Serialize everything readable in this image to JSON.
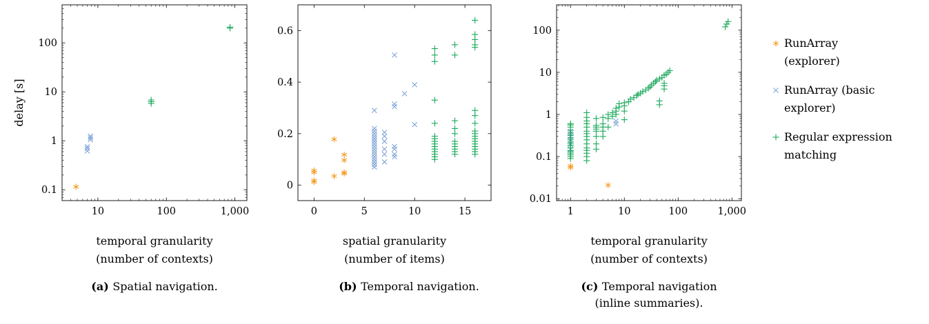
{
  "colors": {
    "runarray_explorer": "#F39C1F",
    "runarray_basic": "#7FA4D8",
    "regex": "#19A85A"
  },
  "legend": {
    "items": [
      {
        "series": "runarray_explorer",
        "marker": "asterisk",
        "lines": [
          "RunArray",
          "(explorer)"
        ]
      },
      {
        "series": "runarray_basic",
        "marker": "cross",
        "lines": [
          "RunArray (basic",
          "explorer)"
        ]
      },
      {
        "series": "regex",
        "marker": "plus",
        "lines": [
          "Regular expression",
          "matching"
        ]
      }
    ]
  },
  "chart_data": [
    {
      "type": "scatter",
      "id": "a",
      "caption_tag": "(a)",
      "caption": [
        "Spatial navigation."
      ],
      "xlabel": [
        "temporal granularity",
        "(number of contexts)"
      ],
      "ylabel": "delay [s]",
      "xscale": "log",
      "yscale": "log",
      "xlim": [
        3,
        1500
      ],
      "ylim": [
        0.06,
        600
      ],
      "xticks": [
        [
          10,
          "10"
        ],
        [
          100,
          "100"
        ],
        [
          1000,
          "1,000"
        ]
      ],
      "yticks": [
        [
          0.1,
          "0.1"
        ],
        [
          1,
          "1"
        ],
        [
          10,
          "10"
        ],
        [
          100,
          "100"
        ]
      ],
      "series": [
        {
          "key": "runarray_explorer",
          "marker": "asterisk",
          "points": [
            [
              4.8,
              0.115
            ]
          ]
        },
        {
          "key": "runarray_basic",
          "marker": "cross",
          "points": [
            [
              7,
              0.62
            ],
            [
              7,
              0.7
            ],
            [
              7,
              0.76
            ],
            [
              7.8,
              1.05
            ],
            [
              7.8,
              1.15
            ],
            [
              7.8,
              1.25
            ]
          ]
        },
        {
          "key": "regex",
          "marker": "plus",
          "points": [
            [
              60,
              5.8
            ],
            [
              60,
              6.3
            ],
            [
              60,
              6.8
            ],
            [
              850,
              210
            ],
            [
              850,
              200
            ]
          ]
        }
      ]
    },
    {
      "type": "scatter",
      "id": "b",
      "caption_tag": "(b)",
      "caption": [
        "Temporal navigation."
      ],
      "xlabel": [
        "spatial granularity",
        "(number of items)"
      ],
      "ylabel": "",
      "xscale": "linear",
      "yscale": "linear",
      "xlim": [
        -1.6,
        17.6
      ],
      "ylim": [
        -0.06,
        0.7
      ],
      "xticks": [
        [
          0,
          "0"
        ],
        [
          5,
          "5"
        ],
        [
          10,
          "10"
        ],
        [
          15,
          "15"
        ]
      ],
      "yticks": [
        [
          0,
          "0"
        ],
        [
          0.2,
          "0.2"
        ],
        [
          0.4,
          "0.4"
        ],
        [
          0.6,
          "0.6"
        ]
      ],
      "series": [
        {
          "key": "runarray_explorer",
          "marker": "asterisk",
          "points": [
            [
              0,
              0.012
            ],
            [
              0,
              0.018
            ],
            [
              0,
              0.05
            ],
            [
              0,
              0.057
            ],
            [
              2,
              0.035
            ],
            [
              2,
              0.178
            ],
            [
              3,
              0.045
            ],
            [
              3,
              0.05
            ],
            [
              3,
              0.097
            ],
            [
              3,
              0.118
            ]
          ]
        },
        {
          "key": "runarray_basic",
          "marker": "cross",
          "points": [
            [
              6,
              0.07
            ],
            [
              6,
              0.08
            ],
            [
              6,
              0.09
            ],
            [
              6,
              0.1
            ],
            [
              6,
              0.11
            ],
            [
              6,
              0.12
            ],
            [
              6,
              0.13
            ],
            [
              6,
              0.14
            ],
            [
              6,
              0.15
            ],
            [
              6,
              0.16
            ],
            [
              6,
              0.17
            ],
            [
              6,
              0.18
            ],
            [
              6,
              0.19
            ],
            [
              6,
              0.2
            ],
            [
              6,
              0.21
            ],
            [
              6,
              0.22
            ],
            [
              6,
              0.29
            ],
            [
              7,
              0.09
            ],
            [
              7,
              0.12
            ],
            [
              7,
              0.14
            ],
            [
              7,
              0.17
            ],
            [
              7,
              0.19
            ],
            [
              7,
              0.205
            ],
            [
              8,
              0.11
            ],
            [
              8,
              0.12
            ],
            [
              8,
              0.14
            ],
            [
              8,
              0.15
            ],
            [
              8,
              0.305
            ],
            [
              8,
              0.315
            ],
            [
              8,
              0.505
            ],
            [
              9,
              0.355
            ],
            [
              10,
              0.235
            ],
            [
              10,
              0.39
            ]
          ]
        },
        {
          "key": "regex",
          "marker": "plus",
          "points": [
            [
              12,
              0.1
            ],
            [
              12,
              0.11
            ],
            [
              12,
              0.12
            ],
            [
              12,
              0.13
            ],
            [
              12,
              0.14
            ],
            [
              12,
              0.15
            ],
            [
              12,
              0.16
            ],
            [
              12,
              0.17
            ],
            [
              12,
              0.18
            ],
            [
              12,
              0.19
            ],
            [
              12,
              0.24
            ],
            [
              12,
              0.33
            ],
            [
              12,
              0.48
            ],
            [
              12,
              0.505
            ],
            [
              12,
              0.53
            ],
            [
              14,
              0.12
            ],
            [
              14,
              0.13
            ],
            [
              14,
              0.14
            ],
            [
              14,
              0.15
            ],
            [
              14,
              0.16
            ],
            [
              14,
              0.17
            ],
            [
              14,
              0.2
            ],
            [
              14,
              0.22
            ],
            [
              14,
              0.25
            ],
            [
              14,
              0.505
            ],
            [
              14,
              0.545
            ],
            [
              16,
              0.12
            ],
            [
              16,
              0.13
            ],
            [
              16,
              0.14
            ],
            [
              16,
              0.15
            ],
            [
              16,
              0.16
            ],
            [
              16,
              0.17
            ],
            [
              16,
              0.18
            ],
            [
              16,
              0.19
            ],
            [
              16,
              0.2
            ],
            [
              16,
              0.21
            ],
            [
              16,
              0.24
            ],
            [
              16,
              0.27
            ],
            [
              16,
              0.29
            ],
            [
              16,
              0.535
            ],
            [
              16,
              0.545
            ],
            [
              16,
              0.565
            ],
            [
              16,
              0.585
            ],
            [
              16,
              0.64
            ]
          ]
        }
      ]
    },
    {
      "type": "scatter",
      "id": "c",
      "caption_tag": "(c)",
      "caption": [
        "Temporal navigation",
        "(inline summaries)."
      ],
      "xlabel": [
        "temporal granularity",
        "(number of contexts)"
      ],
      "ylabel": "",
      "xscale": "log",
      "yscale": "log",
      "xlim": [
        0.55,
        1500
      ],
      "ylim": [
        0.009,
        400
      ],
      "xticks": [
        [
          1,
          "1"
        ],
        [
          10,
          "10"
        ],
        [
          100,
          "100"
        ],
        [
          1000,
          "1,000"
        ]
      ],
      "yticks": [
        [
          0.01,
          "0.01"
        ],
        [
          0.1,
          "0.1"
        ],
        [
          1,
          "1"
        ],
        [
          10,
          "10"
        ],
        [
          100,
          "100"
        ]
      ],
      "series": [
        {
          "key": "runarray_explorer",
          "marker": "asterisk",
          "points": [
            [
              1,
              0.055
            ],
            [
              1,
              0.06
            ],
            [
              5,
              0.021
            ]
          ]
        },
        {
          "key": "runarray_basic",
          "marker": "cross",
          "points": [
            [
              1,
              0.15
            ],
            [
              1,
              0.2
            ],
            [
              1,
              0.25
            ],
            [
              1,
              0.3
            ],
            [
              1,
              0.35
            ],
            [
              1,
              0.4
            ],
            [
              7,
              0.6
            ],
            [
              7,
              0.7
            ]
          ]
        },
        {
          "key": "regex",
          "marker": "plus",
          "points": [
            [
              1,
              0.09
            ],
            [
              1,
              0.1
            ],
            [
              1,
              0.11
            ],
            [
              1,
              0.12
            ],
            [
              1,
              0.13
            ],
            [
              1,
              0.14
            ],
            [
              1,
              0.16
            ],
            [
              1,
              0.18
            ],
            [
              1,
              0.2
            ],
            [
              1,
              0.22
            ],
            [
              1,
              0.25
            ],
            [
              1,
              0.28
            ],
            [
              1,
              0.32
            ],
            [
              1,
              0.36
            ],
            [
              1,
              0.42
            ],
            [
              1,
              0.5
            ],
            [
              1,
              0.56
            ],
            [
              1,
              0.6
            ],
            [
              2,
              0.08
            ],
            [
              2,
              0.1
            ],
            [
              2,
              0.12
            ],
            [
              2,
              0.14
            ],
            [
              2,
              0.16
            ],
            [
              2,
              0.2
            ],
            [
              2,
              0.25
            ],
            [
              2,
              0.3
            ],
            [
              2,
              0.35
            ],
            [
              2,
              0.4
            ],
            [
              2,
              0.5
            ],
            [
              2,
              0.6
            ],
            [
              2,
              0.7
            ],
            [
              2,
              0.85
            ],
            [
              2,
              1.1
            ],
            [
              3,
              0.15
            ],
            [
              3,
              0.2
            ],
            [
              3,
              0.3
            ],
            [
              3,
              0.4
            ],
            [
              3,
              0.45
            ],
            [
              3,
              0.5
            ],
            [
              3,
              0.55
            ],
            [
              3,
              0.8
            ],
            [
              4,
              0.3
            ],
            [
              4,
              0.4
            ],
            [
              4,
              0.5
            ],
            [
              4,
              0.6
            ],
            [
              4,
              0.85
            ],
            [
              5,
              0.5
            ],
            [
              5,
              0.8
            ],
            [
              5,
              1.0
            ],
            [
              6,
              0.9
            ],
            [
              6,
              1.1
            ],
            [
              7,
              1.0
            ],
            [
              7,
              1.2
            ],
            [
              7,
              1.4
            ],
            [
              8,
              1.5
            ],
            [
              8,
              1.8
            ],
            [
              10,
              0.75
            ],
            [
              10,
              1.2
            ],
            [
              10,
              1.6
            ],
            [
              10,
              1.9
            ],
            [
              12,
              2.0
            ],
            [
              13,
              2.3
            ],
            [
              15,
              2.5
            ],
            [
              17,
              2.8
            ],
            [
              18,
              3.0
            ],
            [
              20,
              3.2
            ],
            [
              22,
              3.5
            ],
            [
              25,
              3.8
            ],
            [
              28,
              4.2
            ],
            [
              30,
              4.5
            ],
            [
              32,
              5.0
            ],
            [
              35,
              5.5
            ],
            [
              38,
              6.0
            ],
            [
              40,
              6.5
            ],
            [
              45,
              1.7
            ],
            [
              45,
              2.1
            ],
            [
              45,
              7.0
            ],
            [
              50,
              7.5
            ],
            [
              55,
              4.0
            ],
            [
              55,
              4.8
            ],
            [
              55,
              5.5
            ],
            [
              55,
              8.5
            ],
            [
              60,
              9.0
            ],
            [
              65,
              10.0
            ],
            [
              70,
              11.0
            ],
            [
              750,
              120
            ],
            [
              800,
              140
            ],
            [
              850,
              160
            ]
          ]
        }
      ]
    }
  ]
}
